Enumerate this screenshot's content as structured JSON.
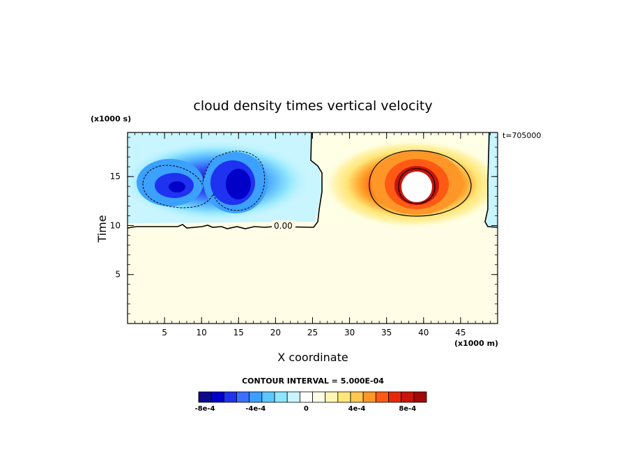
{
  "chart_data": {
    "type": "heatmap",
    "title": "cloud density times vertical velocity",
    "xlabel": "X coordinate",
    "ylabel": "Time",
    "x_unit": "(x1000 m)",
    "y_unit": "(x1000 s)",
    "annotation": "t=705000",
    "contour_label": "0.00",
    "xlim": [
      0,
      50
    ],
    "ylim": [
      0,
      19.5
    ],
    "xticks": [
      5,
      10,
      15,
      20,
      25,
      30,
      35,
      40,
      45
    ],
    "yticks": [
      5,
      10,
      15
    ],
    "contour_interval_text": "CONTOUR INTERVAL = 5.000E-04",
    "colorbar": {
      "colors": [
        "#0a0a8c",
        "#0000c8",
        "#1e32f0",
        "#3c6eff",
        "#3ca0ff",
        "#5ac8ff",
        "#8ce6ff",
        "#c8f5ff",
        "#ffffff",
        "#ffffe6",
        "#fff5b4",
        "#ffe678",
        "#ffc850",
        "#ff9628",
        "#ff5a14",
        "#e6280a",
        "#c8140a",
        "#a00a0a"
      ],
      "tick_labels": [
        "-8e-4",
        "-4e-4",
        "0",
        "4e-4",
        "8e-4"
      ],
      "tick_values": [
        -0.0008,
        -0.0004,
        0,
        0.0004,
        0.0008
      ],
      "vmin": -0.00085,
      "vmax": 0.00095
    },
    "features": [
      {
        "kind": "negative_core",
        "x": 7,
        "y": 14.2,
        "value": -0.0008
      },
      {
        "kind": "negative_core",
        "x": 14.5,
        "y": 14.5,
        "value": -0.00085
      },
      {
        "kind": "positive_core",
        "x": 39,
        "y": 14.2,
        "value": 0.00095
      }
    ]
  }
}
